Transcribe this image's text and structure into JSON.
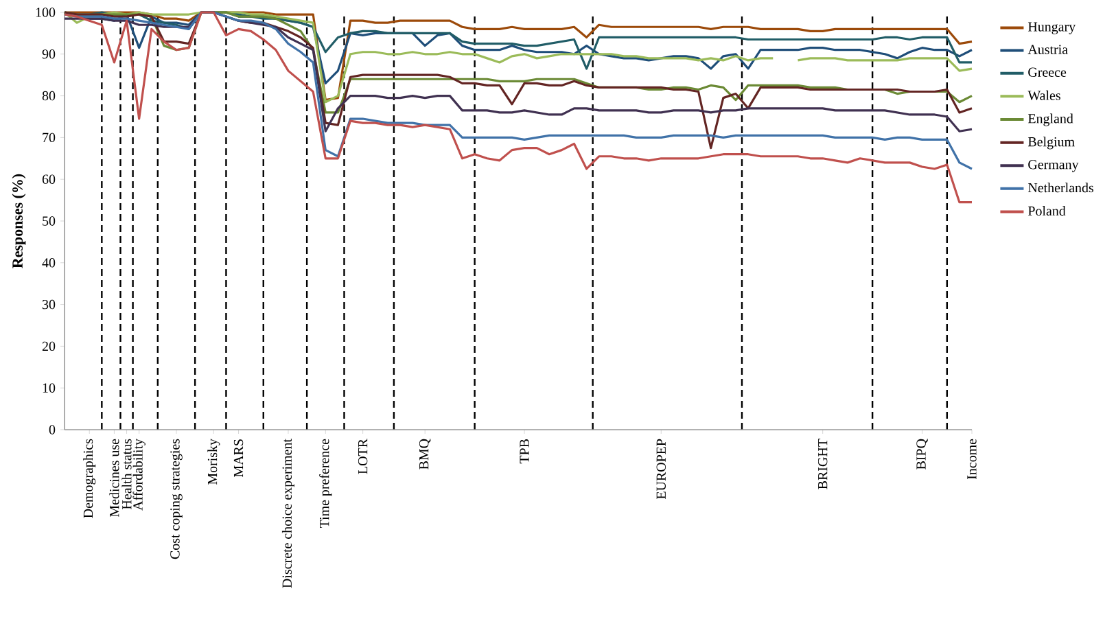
{
  "chart_data": {
    "type": "line",
    "ylabel": "Responses (%)",
    "categories": [
      null,
      null,
      "Demographics",
      null,
      "Medicines use",
      "Health status",
      "Affordability",
      null,
      null,
      "Cost coping strategies",
      null,
      null,
      "Morisky",
      null,
      "MARS",
      null,
      null,
      null,
      "Discrete choice experiment",
      null,
      null,
      "Time preference",
      null,
      null,
      "LOTR",
      null,
      null,
      null,
      null,
      "BMQ",
      null,
      null,
      null,
      null,
      null,
      null,
      null,
      "TPB",
      null,
      null,
      null,
      null,
      null,
      null,
      null,
      null,
      null,
      null,
      "EUROPEP",
      null,
      null,
      null,
      null,
      null,
      null,
      null,
      null,
      null,
      null,
      null,
      null,
      "BRIGHT",
      null,
      null,
      null,
      null,
      null,
      null,
      null,
      "BIPQ",
      null,
      null,
      null,
      "Income"
    ],
    "ylim": [
      0,
      100
    ],
    "yticks": [
      0,
      10,
      20,
      30,
      40,
      50,
      60,
      70,
      80,
      90,
      100
    ],
    "legend": "right",
    "grid": "x",
    "series": [
      {
        "name": "Hungary",
        "color": "#9c4a0a",
        "values": [
          100,
          100,
          100,
          100,
          100,
          100,
          100,
          99.5,
          98.5,
          98.5,
          98,
          100,
          100,
          100,
          100,
          100,
          100,
          99.5,
          99.5,
          99.5,
          99.5,
          79,
          79.5,
          98,
          98,
          97.5,
          97.5,
          98,
          98,
          98,
          98,
          98,
          96.5,
          96,
          96,
          96,
          96.5,
          96,
          96,
          96,
          96,
          96.5,
          94,
          97,
          96.5,
          96.5,
          96.5,
          96.5,
          96.5,
          96.5,
          96.5,
          96.5,
          96,
          96.5,
          96.5,
          96.5,
          96,
          96,
          96,
          96,
          95.5,
          95.5,
          96,
          96,
          96,
          96,
          96,
          96,
          96,
          96,
          96,
          96,
          92.5,
          93
        ]
      },
      {
        "name": "Austria",
        "color": "#1f4e79",
        "values": [
          100,
          99.5,
          98.5,
          98.5,
          98,
          99.5,
          91.5,
          99,
          97.5,
          97.5,
          97,
          100,
          100,
          100,
          99,
          99,
          99,
          98.5,
          98,
          97.5,
          96.5,
          83,
          86,
          95,
          94.5,
          95,
          95,
          95,
          95,
          92,
          94.5,
          95,
          92,
          91,
          91,
          91,
          92,
          91,
          90.5,
          90.5,
          90.5,
          90,
          92,
          90,
          89.5,
          89,
          89,
          88.5,
          89,
          89.5,
          89.5,
          89,
          86.5,
          89.5,
          90,
          86.5,
          91,
          91,
          91,
          91,
          91.5,
          91.5,
          91,
          91,
          91,
          90.5,
          90,
          89,
          90.5,
          91.5,
          91,
          91,
          89.5,
          91
        ]
      },
      {
        "name": "Greece",
        "color": "#215d67",
        "values": [
          100,
          99.5,
          99.5,
          100,
          99.5,
          99.5,
          99.5,
          98,
          97.5,
          97,
          96,
          100,
          100,
          100,
          99.5,
          99,
          98.5,
          98.5,
          98,
          97.5,
          96.5,
          90.5,
          94,
          95,
          95.5,
          95.5,
          95,
          95,
          95,
          95,
          95,
          95,
          93,
          92.5,
          92.5,
          92.5,
          92.5,
          92,
          92,
          92.5,
          93,
          93.5,
          86.5,
          94,
          94,
          94,
          94,
          94,
          94,
          94,
          94,
          94,
          94,
          94,
          94,
          93.5,
          93.5,
          93.5,
          93.5,
          93.5,
          93.5,
          93.5,
          93.5,
          93.5,
          93.5,
          93.5,
          94,
          94,
          93.5,
          94,
          94,
          94,
          88,
          88
        ]
      },
      {
        "name": "Wales",
        "color": "#9bbb59",
        "values": [
          100,
          97.5,
          99,
          99.5,
          100,
          99.5,
          100,
          99.5,
          99.5,
          99.5,
          99.5,
          100,
          100,
          100,
          100,
          99.5,
          99.5,
          99,
          98.5,
          98,
          97.5,
          78.5,
          80,
          90,
          90.5,
          90.5,
          90,
          90,
          90.5,
          90,
          90,
          90.5,
          90,
          90,
          89,
          88,
          89.5,
          90,
          89,
          89.5,
          90,
          90,
          90,
          90,
          90,
          89.5,
          89.5,
          89,
          89,
          89,
          89,
          88.5,
          89,
          88.5,
          89.5,
          88.5,
          89,
          89,
          null,
          88.5,
          89,
          89,
          89,
          88.5,
          88.5,
          88.5,
          88.5,
          88.5,
          89,
          89,
          89,
          89,
          86,
          86.5
        ]
      },
      {
        "name": "England",
        "color": "#6b8a35",
        "values": [
          100,
          99.5,
          99.5,
          99.5,
          99.5,
          99.5,
          99.5,
          99,
          92,
          91,
          91.5,
          100,
          100,
          100,
          99,
          99,
          99,
          98.5,
          97,
          95.5,
          91,
          76,
          76,
          84,
          84,
          84,
          84,
          84,
          84,
          84,
          84,
          84,
          84,
          84,
          84,
          83.5,
          83.5,
          83.5,
          84,
          84,
          84,
          84,
          83,
          82,
          82,
          82,
          82,
          81.5,
          81.5,
          82,
          82,
          81.5,
          82.5,
          82,
          79,
          82.5,
          82.5,
          82.5,
          82.5,
          82.5,
          82,
          82,
          82,
          81.5,
          81.5,
          81.5,
          81.5,
          80.5,
          81,
          81,
          81,
          81,
          78.5,
          80
        ]
      },
      {
        "name": "Belgium",
        "color": "#632523",
        "values": [
          100,
          99.5,
          99.5,
          99.5,
          99,
          99,
          99.5,
          99,
          93,
          93,
          92.5,
          100,
          100,
          99,
          98,
          97.5,
          97.5,
          96.5,
          95.5,
          94,
          91.5,
          73.5,
          73,
          84.5,
          85,
          85,
          85,
          85,
          85,
          85,
          85,
          84.5,
          83,
          83,
          82.5,
          82.5,
          78,
          83,
          83,
          82.5,
          82.5,
          83.5,
          82.5,
          82,
          82,
          82,
          82,
          82,
          82,
          81.5,
          81.5,
          81,
          67.5,
          79.5,
          80.5,
          77,
          82,
          82,
          82,
          82,
          81.5,
          81.5,
          81.5,
          81.5,
          81.5,
          81.5,
          81.5,
          81.5,
          81,
          81,
          81,
          81.5,
          76,
          77
        ]
      },
      {
        "name": "Germany",
        "color": "#403151",
        "values": [
          98.5,
          98.5,
          98.5,
          98.5,
          98,
          98,
          97,
          97,
          96.5,
          96.5,
          96.5,
          100,
          100,
          99,
          98,
          97.5,
          97,
          96.5,
          94,
          92.5,
          91,
          71.5,
          77,
          80,
          80,
          80,
          79.5,
          79.5,
          80,
          79.5,
          80,
          80,
          76.5,
          76.5,
          76.5,
          76,
          76,
          76.5,
          76,
          75.5,
          75.5,
          77,
          77,
          76.5,
          76.5,
          76.5,
          76.5,
          76,
          76,
          76.5,
          76.5,
          76.5,
          76,
          76.5,
          76.5,
          77,
          77,
          77,
          77,
          77,
          77,
          77,
          76.5,
          76.5,
          76.5,
          76.5,
          76.5,
          76,
          75.5,
          75.5,
          75.5,
          75,
          71.5,
          72
        ]
      },
      {
        "name": "Netherlands",
        "color": "#4072a8",
        "values": [
          99.5,
          99,
          99,
          99,
          98.5,
          98.5,
          98,
          97.5,
          97,
          96.5,
          96,
          100,
          100,
          99,
          98,
          98,
          97.5,
          96,
          92.5,
          90.5,
          88,
          67,
          65.5,
          74.5,
          74.5,
          74,
          73.5,
          73.5,
          73.5,
          73,
          73,
          73,
          70,
          70,
          70,
          70,
          70,
          69.5,
          70,
          70.5,
          70.5,
          70.5,
          70.5,
          70.5,
          70.5,
          70.5,
          70,
          70,
          70,
          70.5,
          70.5,
          70.5,
          70.5,
          70,
          70.5,
          70.5,
          70.5,
          70.5,
          70.5,
          70.5,
          70.5,
          70.5,
          70,
          70,
          70,
          70,
          69.5,
          70,
          70,
          69.5,
          69.5,
          69.5,
          64,
          62.5
        ]
      },
      {
        "name": "Poland",
        "color": "#c0504d",
        "values": [
          99.5,
          99,
          98,
          97,
          88,
          98,
          74.5,
          96,
          93,
          91,
          91.5,
          100,
          100,
          94.5,
          96,
          95.5,
          93.5,
          91,
          86,
          83.5,
          81,
          65,
          65,
          74,
          73.5,
          73.5,
          73,
          73,
          72.5,
          73,
          72.5,
          72,
          65,
          66,
          65,
          64.5,
          67,
          67.5,
          67.5,
          66,
          67,
          68.5,
          62.5,
          65.5,
          65.5,
          65,
          65,
          64.5,
          65,
          65,
          65,
          65,
          65.5,
          66,
          66,
          66,
          65.5,
          65.5,
          65.5,
          65.5,
          65,
          65,
          64.5,
          64,
          65,
          64.5,
          64,
          64,
          64,
          63,
          62.5,
          63.5,
          54.5,
          54.5
        ]
      }
    ]
  }
}
